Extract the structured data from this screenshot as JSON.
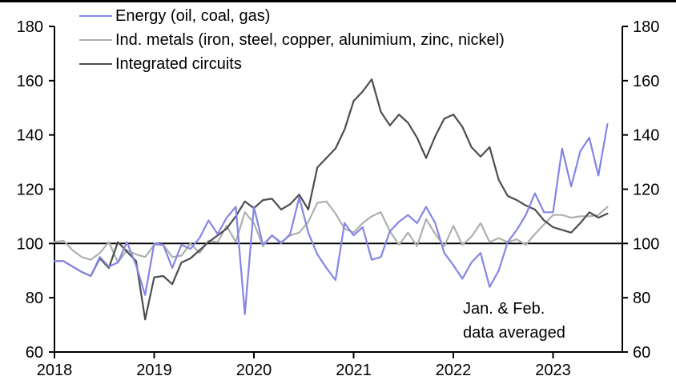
{
  "chart_data": {
    "type": "line",
    "title": "",
    "legend_position": "top-left",
    "grid": false,
    "x_axis": {
      "tick_labels": [
        "2018",
        "2019",
        "2020",
        "2021",
        "2022",
        "2023"
      ]
    },
    "y_axis": {
      "min": 60,
      "max": 180,
      "tick_interval": 20,
      "tick_labels": [
        "60",
        "80",
        "100",
        "120",
        "140",
        "160",
        "180"
      ],
      "dual_sided": true
    },
    "reference_line": 100,
    "periods": [
      "Jan-Feb 2018",
      "Mar 2018",
      "Apr 2018",
      "May 2018",
      "Jun 2018",
      "Jul 2018",
      "Aug 2018",
      "Sep 2018",
      "Oct 2018",
      "Nov 2018",
      "Dec 2018",
      "Jan-Feb 2019",
      "Mar 2019",
      "Apr 2019",
      "May 2019",
      "Jun 2019",
      "Jul 2019",
      "Aug 2019",
      "Sep 2019",
      "Oct 2019",
      "Nov 2019",
      "Dec 2019",
      "Jan-Feb 2020",
      "Mar 2020",
      "Apr 2020",
      "May 2020",
      "Jun 2020",
      "Jul 2020",
      "Aug 2020",
      "Sep 2020",
      "Oct 2020",
      "Nov 2020",
      "Dec 2020",
      "Jan-Feb 2021",
      "Mar 2021",
      "Apr 2021",
      "May 2021",
      "Jun 2021",
      "Jul 2021",
      "Aug 2021",
      "Sep 2021",
      "Oct 2021",
      "Nov 2021",
      "Dec 2021",
      "Jan-Feb 2022",
      "Mar 2022",
      "Apr 2022",
      "May 2022",
      "Jun 2022",
      "Jul 2022",
      "Aug 2022",
      "Sep 2022",
      "Oct 2022",
      "Nov 2022",
      "Dec 2022",
      "Jan-Feb 2023",
      "Mar 2023",
      "Apr 2023",
      "May 2023",
      "Jun 2023",
      "Jul 2023",
      "Aug 2023"
    ],
    "series": [
      {
        "name": "Energy (oil, coal, gas)",
        "color": "#8585e6",
        "values": [
          93.5,
          93.5,
          91.5,
          89.5,
          88,
          95,
          91.5,
          93,
          100.5,
          92,
          81,
          100,
          99.5,
          91,
          99.5,
          98,
          102,
          108.5,
          103.5,
          109.5,
          113.5,
          74,
          113.5,
          99.5,
          103,
          100,
          103.5,
          117,
          104,
          96,
          91,
          86.5,
          107.5,
          103,
          106,
          94,
          95,
          104.5,
          108,
          110.5,
          107.5,
          113.5,
          107.5,
          96.5,
          92,
          87,
          93,
          96.5,
          84,
          90,
          100.5,
          105,
          110.5,
          118.5,
          111.5,
          111.5,
          135,
          121,
          134,
          139,
          125,
          144
        ]
      },
      {
        "name": "Ind. metals (iron, steel, copper, alunimium, zinc, nickel)",
        "color": "#afafaf",
        "values": [
          100.5,
          101,
          97.5,
          95,
          94,
          96.5,
          100.5,
          93,
          97.5,
          96,
          95,
          99.5,
          99.5,
          95,
          95.5,
          100,
          96.5,
          101,
          100.5,
          106.5,
          100.5,
          111.5,
          107.5,
          99,
          103,
          100.5,
          103,
          104,
          108,
          115,
          115.5,
          111,
          105.5,
          104,
          107.5,
          110,
          111.5,
          104.5,
          99.5,
          104,
          99,
          109,
          103.5,
          99,
          106.5,
          99.5,
          102.5,
          107.5,
          100.5,
          102,
          100.5,
          101.5,
          99.5,
          103.5,
          107,
          110.5,
          110.5,
          109.5,
          110,
          110,
          110.5,
          113.5
        ]
      },
      {
        "name": "Integrated circuits",
        "color": "#4d4d4f",
        "values": [
          93.5,
          93.5,
          91.5,
          89.5,
          88,
          94.5,
          91,
          100.5,
          97,
          93.5,
          72,
          87.5,
          88,
          85,
          93,
          94.5,
          97.5,
          100.5,
          103,
          105.5,
          110,
          115.5,
          113,
          116,
          116.5,
          112.5,
          114.5,
          118,
          112.5,
          128,
          131.5,
          135,
          142,
          152.5,
          156,
          160.5,
          148.5,
          143.5,
          147.5,
          144.5,
          139,
          131.5,
          139.5,
          146,
          147.5,
          143,
          135.5,
          132,
          135.5,
          123.5,
          117.5,
          116,
          114,
          112.5,
          108.5,
          106,
          105,
          104,
          107.5,
          111.5,
          109.5,
          111
        ]
      }
    ],
    "annotation": {
      "line1": "Jan. & Feb.",
      "line2": "data averaged"
    }
  },
  "colors": {
    "axis": "#000000",
    "reference_line": "#000000",
    "background": "#ffffff",
    "top_border": "#000000"
  }
}
